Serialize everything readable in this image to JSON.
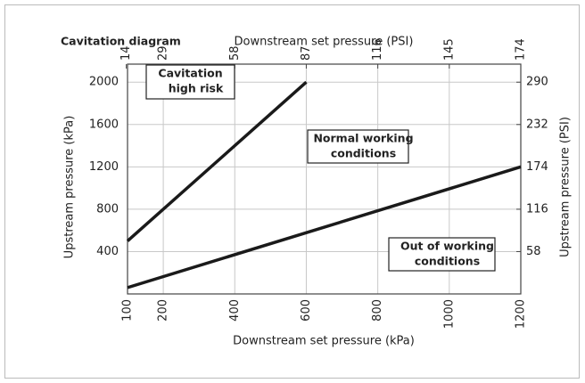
{
  "chart_data": {
    "type": "line",
    "title": "Cavitation diagram",
    "x_label": "Downstream set pressure (kPa)",
    "x2_label": "Downstream set pressure (PSI)",
    "y_label": "Upstream pressure (kPa)",
    "y2_label": "Upstream pressure (PSI)",
    "xlim": [
      100,
      1200
    ],
    "xticks": [
      100,
      200,
      400,
      600,
      800,
      1000,
      1200
    ],
    "x2lim": [
      14.5,
      174
    ],
    "x2ticks": [
      14,
      29,
      58,
      87,
      116,
      145,
      174
    ],
    "ylim": [
      0,
      2170
    ],
    "yticks": [
      400,
      800,
      1200,
      1600,
      2000
    ],
    "y2lim": [
      0,
      314.7
    ],
    "y2ticks": [
      58,
      116,
      174,
      232,
      290
    ],
    "grid": true,
    "series": [
      {
        "color": "#1a1a1a",
        "x": [
          100,
          600
        ],
        "values": [
          500,
          2000
        ]
      },
      {
        "color": "#1a1a1a",
        "x": [
          100,
          1200
        ],
        "values": [
          60,
          1200
        ]
      }
    ],
    "annotations": [
      {
        "lines": [
          "Cavitation",
          "high risk"
        ]
      },
      {
        "lines": [
          "Normal working",
          "conditions"
        ]
      },
      {
        "lines": [
          "Out of working",
          "conditions"
        ]
      }
    ]
  }
}
